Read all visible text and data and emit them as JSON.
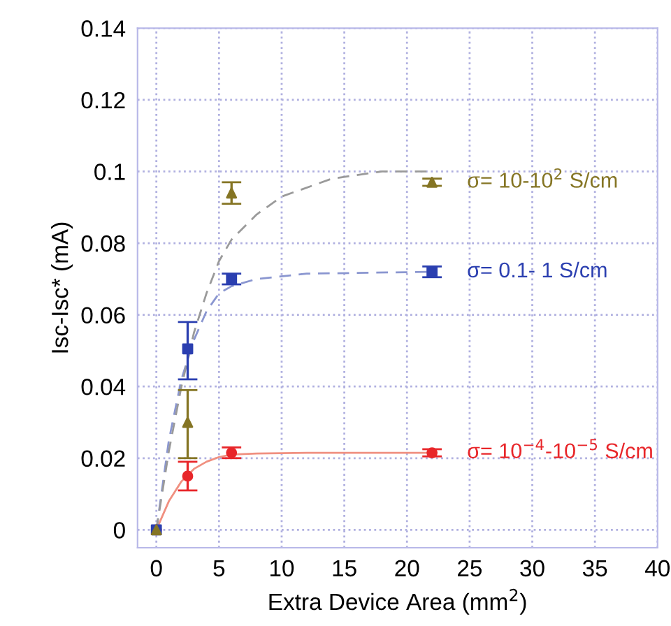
{
  "chart_data": {
    "type": "scatter",
    "xlabel": "Extra Device Area (mm$^{2}$)",
    "ylabel": "Isc-Isc* (mA)",
    "xlim": [
      -1.5,
      40
    ],
    "xticks": [
      0,
      5,
      10,
      15,
      20,
      25,
      30,
      35,
      40
    ],
    "ylim": [
      -0.005,
      0.14
    ],
    "yticks": [
      0,
      0.02,
      0.04,
      0.06,
      0.08,
      0.1,
      0.12,
      0.14
    ],
    "grid": true,
    "series": [
      {
        "color": "#e8262a",
        "marker": "circle",
        "x": [
          0,
          2.5,
          6,
          22
        ],
        "values": [
          0,
          0.015,
          0.0215,
          0.0215
        ],
        "errors": [
          null,
          [
            0.011,
            0.019
          ],
          [
            0.02,
            0.023
          ],
          [
            0.0205,
            0.0225
          ]
        ]
      },
      {
        "color": "#2b3fb0",
        "marker": "square",
        "x": [
          0,
          2.5,
          6,
          22
        ],
        "values": [
          0,
          0.0505,
          0.07,
          0.072
        ],
        "errors": [
          null,
          [
            0.042,
            0.058
          ],
          [
            0.0685,
            0.0715
          ],
          [
            0.0705,
            0.0735
          ]
        ]
      },
      {
        "color": "#857524",
        "marker": "triangle",
        "x": [
          0,
          2.5,
          6,
          22
        ],
        "values": [
          0,
          0.03,
          0.094,
          0.097
        ],
        "errors": [
          null,
          [
            0.02,
            0.039
          ],
          [
            0.091,
            0.097
          ],
          [
            0.096,
            0.098
          ]
        ]
      },
      {
        "type": "line",
        "color": "#f09080",
        "line_style": "solid",
        "x": [
          0,
          1,
          2,
          3,
          4,
          5,
          6,
          8,
          12,
          22
        ],
        "values": [
          0,
          0.008,
          0.0135,
          0.017,
          0.019,
          0.0203,
          0.021,
          0.0213,
          0.0215,
          0.0215
        ]
      },
      {
        "type": "line",
        "color": "#8a96d0",
        "line_style": "dashed",
        "x": [
          0,
          1,
          2,
          3,
          4,
          5,
          6,
          8,
          12,
          22
        ],
        "values": [
          0,
          0.025,
          0.042,
          0.053,
          0.061,
          0.066,
          0.068,
          0.07,
          0.0715,
          0.072
        ]
      },
      {
        "type": "line",
        "color": "#9a9a9a",
        "line_style": "dashed",
        "x": [
          0,
          1,
          2,
          3,
          4,
          5,
          6,
          8,
          10,
          14,
          18,
          22
        ],
        "values": [
          0,
          0.022,
          0.04,
          0.055,
          0.066,
          0.075,
          0.081,
          0.088,
          0.093,
          0.098,
          0.1,
          0.1
        ]
      }
    ],
    "annotations": [
      "σ= 10$^{−4}$-10$^{−5}$ S/cm",
      "σ= 0.1- 1 S/cm",
      "σ= 10-10$^{2}$ S/cm"
    ]
  }
}
